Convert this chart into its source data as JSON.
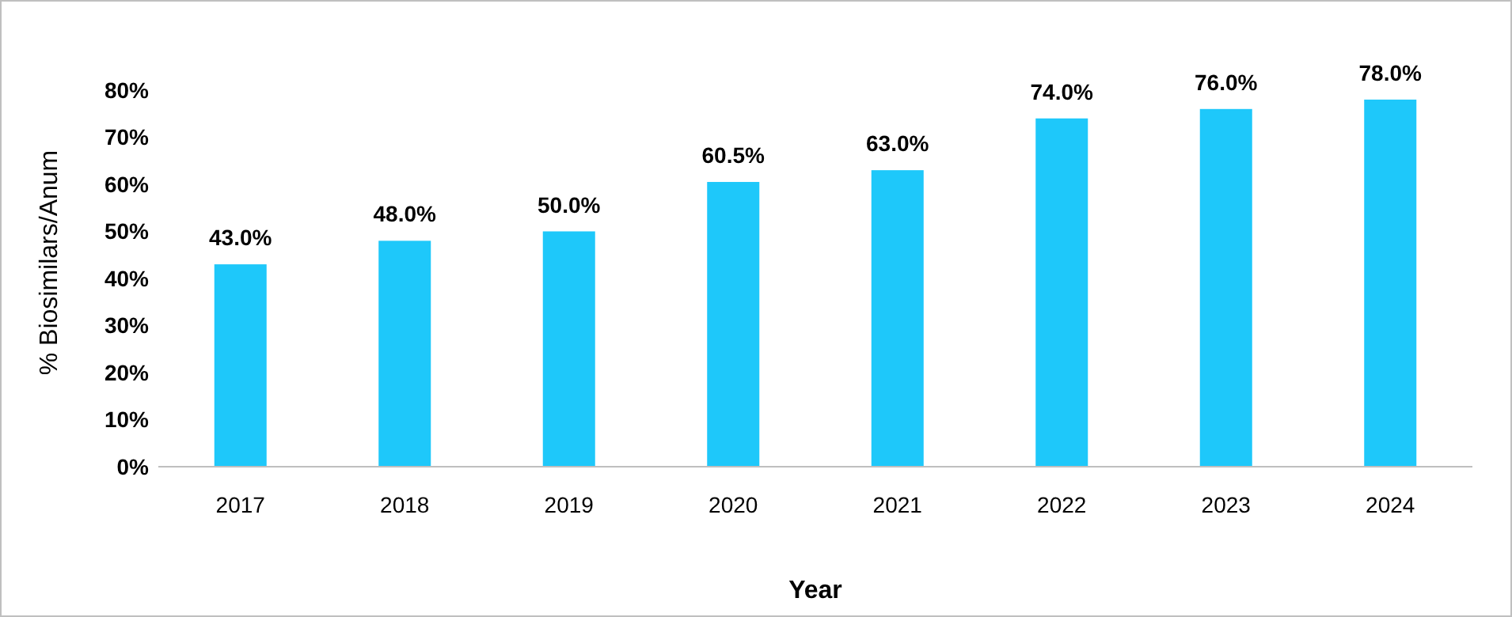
{
  "chart_data": {
    "type": "bar",
    "xlabel": "Year",
    "ylabel": "% Biosimilars/Anum",
    "categories": [
      "2017",
      "2018",
      "2019",
      "2020",
      "2021",
      "2022",
      "2023",
      "2024"
    ],
    "values": [
      43,
      48,
      50,
      60.5,
      63,
      74,
      76,
      78
    ],
    "value_labels": [
      "43.0%",
      "48.0%",
      "50.0%",
      "60.5%",
      "63.0%",
      "74.0%",
      "76.0%",
      "78.0%"
    ],
    "color": "#1ec8fa",
    "ylim": [
      0,
      80
    ],
    "yticks": [
      {
        "value": 0,
        "label": "0%"
      },
      {
        "value": 10,
        "label": "10%"
      },
      {
        "value": 20,
        "label": "20%"
      },
      {
        "value": 30,
        "label": "30%"
      },
      {
        "value": 40,
        "label": "40%"
      },
      {
        "value": 50,
        "label": "50%"
      },
      {
        "value": 60,
        "label": "60%"
      },
      {
        "value": 70,
        "label": "70%"
      },
      {
        "value": 80,
        "label": "80%"
      }
    ],
    "grid": false
  }
}
